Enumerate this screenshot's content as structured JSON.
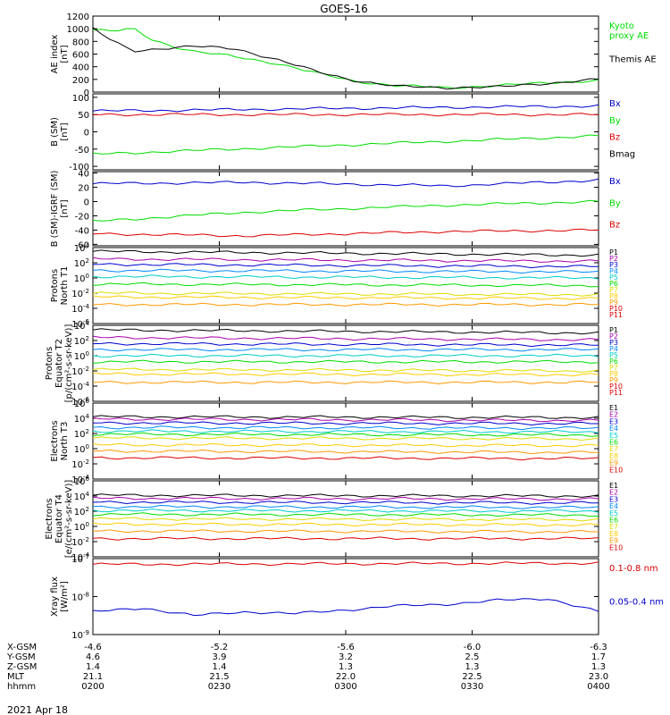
{
  "title": "GOES-16",
  "date_label": "2021 Apr 18",
  "colors": {
    "black": "#000000",
    "red": "#dd0000",
    "green": "#00dd00",
    "blue": "#0000cc",
    "cyan": "#00bbdd",
    "teal": "#00cccc",
    "yellow": "#dddd00",
    "orange": "#ff9900",
    "darkorange": "#cc6600"
  },
  "orbit_table": {
    "rows": [
      {
        "label": "X-GSM",
        "values": [
          "-4.6",
          "-5.2",
          "-5.6",
          "-6.0",
          "-6.3"
        ]
      },
      {
        "label": "Y-GSM",
        "values": [
          "4.6",
          "3.9",
          "3.2",
          "2.5",
          "1.7"
        ]
      },
      {
        "label": "Z-GSM",
        "values": [
          "1.4",
          "1.4",
          "1.3",
          "1.3",
          "1.3"
        ]
      },
      {
        "label": "MLT",
        "values": [
          "21.1",
          "21.5",
          "22.0",
          "22.5",
          "23.0"
        ]
      },
      {
        "label": "hhmm",
        "values": [
          "0200",
          "0230",
          "0300",
          "0330",
          "0400"
        ]
      }
    ]
  },
  "chart_data": [
    {
      "type": "line",
      "id": "ae",
      "ylabel": "AE index\n[nT]",
      "ylim": [
        0,
        1200
      ],
      "ticks": [
        "0",
        "200",
        "400",
        "600",
        "800",
        "1000",
        "1200"
      ],
      "tick_values": [
        0,
        200,
        400,
        600,
        800,
        1000,
        1200
      ],
      "x": [
        "0200",
        "0230",
        "0300",
        "0330",
        "0400"
      ],
      "series": [
        {
          "name": "Kyoto\nproxy AE",
          "color": "#00dd00",
          "x": [
            0,
            0.04,
            0.08,
            0.12,
            0.16,
            0.2,
            0.28,
            0.36,
            0.44,
            0.52,
            0.6,
            0.7,
            0.8,
            0.9,
            1.0
          ],
          "values": [
            980,
            960,
            1000,
            820,
            720,
            640,
            560,
            460,
            300,
            170,
            100,
            70,
            100,
            150,
            180
          ]
        },
        {
          "name": "Themis AE",
          "color": "#000000",
          "x": [
            0,
            0.04,
            0.08,
            0.12,
            0.16,
            0.2,
            0.28,
            0.36,
            0.44,
            0.52,
            0.6,
            0.7,
            0.8,
            0.9,
            1.0
          ],
          "values": [
            1000,
            800,
            650,
            680,
            700,
            720,
            690,
            520,
            330,
            180,
            90,
            70,
            80,
            140,
            200
          ]
        }
      ]
    },
    {
      "type": "line",
      "id": "bsm",
      "ylabel": "B (SM)\n[nT]",
      "ylim": [
        -110,
        110
      ],
      "ticks": [
        "-100",
        "-50",
        "0",
        "50",
        "100"
      ],
      "tick_values": [
        -100,
        -50,
        0,
        50,
        100
      ],
      "series": [
        {
          "name": "Bx",
          "color": "#0000cc",
          "x": [
            0,
            0.5,
            1.0
          ],
          "values": [
            60,
            68,
            75
          ]
        },
        {
          "name": "By",
          "color": "#00dd00",
          "x": [
            0,
            0.5,
            1.0
          ],
          "values": [
            -65,
            -38,
            -12
          ]
        },
        {
          "name": "Bz",
          "color": "#dd0000",
          "x": [
            0,
            0.5,
            1.0
          ],
          "values": [
            50,
            50,
            50
          ]
        },
        {
          "name": "Bmag",
          "color": "#000000",
          "x": [],
          "values": []
        }
      ]
    },
    {
      "type": "line",
      "id": "bigrf",
      "ylabel": "B (SM)-IGRF (SM)\n[nT]",
      "ylim": [
        -62,
        42
      ],
      "ticks": [
        "-60",
        "-40",
        "-20",
        "0",
        "20",
        "40"
      ],
      "tick_values": [
        -60,
        -40,
        -20,
        0,
        20,
        40
      ],
      "series": [
        {
          "name": "Bx",
          "color": "#0000cc",
          "x": [
            0,
            0.3,
            0.7,
            1.0
          ],
          "values": [
            25,
            27,
            22,
            30
          ]
        },
        {
          "name": "By",
          "color": "#00dd00",
          "x": [
            0,
            0.3,
            0.7,
            1.0
          ],
          "values": [
            -28,
            -15,
            -5,
            0
          ]
        },
        {
          "name": "Bz",
          "color": "#dd0000",
          "x": [
            0,
            0.3,
            0.7,
            1.0
          ],
          "values": [
            -45,
            -48,
            -42,
            -40
          ]
        }
      ]
    },
    {
      "type": "line",
      "id": "pn",
      "ylabel": "Protons\nNorth T1",
      "log": true,
      "ylim": [
        -6,
        4
      ],
      "ticks": [
        "10^-6",
        "10^-4",
        "10^-2",
        "10^0",
        "10^2",
        "10^4"
      ],
      "tick_values": [
        -6,
        -4,
        -2,
        0,
        2,
        4
      ],
      "series": [
        {
          "name": "P1",
          "color": "#000000",
          "x": [
            0,
            1.0
          ],
          "values": [
            3.5,
            3.0
          ]
        },
        {
          "name": "P2",
          "color": "#aa00aa",
          "x": [
            0,
            1.0
          ],
          "values": [
            2.5,
            2.2
          ]
        },
        {
          "name": "P3",
          "color": "#0000cc",
          "x": [
            0,
            1.0
          ],
          "values": [
            1.8,
            1.5
          ]
        },
        {
          "name": "P4",
          "color": "#0088ff",
          "x": [
            0,
            1.0
          ],
          "values": [
            1.0,
            0.8
          ]
        },
        {
          "name": "P5",
          "color": "#00cccc",
          "x": [
            0,
            1.0
          ],
          "values": [
            0.2,
            0.0
          ]
        },
        {
          "name": "P6",
          "color": "#00dd00",
          "x": [
            0,
            1.0
          ],
          "values": [
            -0.8,
            -1.0
          ]
        },
        {
          "name": "P7",
          "color": "#dddd00",
          "x": [
            0,
            1.0
          ],
          "values": [
            -2.0,
            -2.2
          ]
        },
        {
          "name": "P8",
          "color": "#ffcc00",
          "x": [
            0,
            1.0
          ],
          "values": [
            -2.5,
            -2.7
          ]
        },
        {
          "name": "P9",
          "color": "#ff9900",
          "x": [
            0,
            1.0
          ],
          "values": [
            -3.5,
            -3.5
          ]
        },
        {
          "name": "P10",
          "color": "#dd0000",
          "x": [],
          "values": []
        },
        {
          "name": "P11",
          "color": "#dd0000",
          "x": [],
          "values": []
        }
      ]
    },
    {
      "type": "line",
      "id": "pe",
      "ylabel": "Protons\nEquator T2\n[p/(cm²-s-sr-keV)]",
      "log": true,
      "ylim": [
        -6,
        4
      ],
      "ticks": [
        "10^-6",
        "10^-4",
        "10^-2",
        "10^0",
        "10^2",
        "10^4"
      ],
      "tick_values": [
        -6,
        -4,
        -2,
        0,
        2,
        4
      ],
      "series": [
        {
          "name": "P1",
          "color": "#000000",
          "x": [
            0,
            1.0
          ],
          "values": [
            3.4,
            3.0
          ]
        },
        {
          "name": "P2",
          "color": "#aa00aa",
          "x": [
            0,
            1.0
          ],
          "values": [
            2.4,
            2.1
          ]
        },
        {
          "name": "P3",
          "color": "#0000cc",
          "x": [
            0,
            1.0
          ],
          "values": [
            1.6,
            1.4
          ]
        },
        {
          "name": "P4",
          "color": "#0088ff",
          "x": [
            0,
            1.0
          ],
          "values": [
            0.8,
            0.8
          ]
        },
        {
          "name": "P5",
          "color": "#00cccc",
          "x": [
            0,
            1.0
          ],
          "values": [
            0.0,
            0.0
          ]
        },
        {
          "name": "P6",
          "color": "#00dd00",
          "x": [
            0,
            1.0
          ],
          "values": [
            -0.8,
            -0.8
          ]
        },
        {
          "name": "P7",
          "color": "#dddd00",
          "x": [
            0,
            1.0
          ],
          "values": [
            -1.8,
            -2.0
          ]
        },
        {
          "name": "P8",
          "color": "#ffcc00",
          "x": [
            0,
            1.0
          ],
          "values": [
            -2.4,
            -2.5
          ]
        },
        {
          "name": "P9",
          "color": "#ff9900",
          "x": [
            0,
            1.0
          ],
          "values": [
            -3.5,
            -3.5
          ]
        },
        {
          "name": "P10",
          "color": "#dd0000",
          "x": [],
          "values": []
        },
        {
          "name": "P11",
          "color": "#dd0000",
          "x": [],
          "values": []
        }
      ]
    },
    {
      "type": "line",
      "id": "en",
      "ylabel": "Electrons\nNorth T3",
      "log": true,
      "ylim": [
        -4,
        6
      ],
      "ticks": [
        "10^-4",
        "10^-2",
        "10^0",
        "10^2",
        "10^4",
        "10^6"
      ],
      "tick_values": [
        -4,
        -2,
        0,
        2,
        4,
        6
      ],
      "series": [
        {
          "name": "E1",
          "color": "#000000",
          "x": [
            0,
            1.0
          ],
          "values": [
            4.2,
            4.1
          ]
        },
        {
          "name": "E2",
          "color": "#aa00aa",
          "x": [
            0,
            1.0
          ],
          "values": [
            3.9,
            3.7
          ]
        },
        {
          "name": "E3",
          "color": "#0000cc",
          "x": [
            0,
            1.0
          ],
          "values": [
            3.4,
            3.3
          ]
        },
        {
          "name": "E4",
          "color": "#0088ff",
          "x": [
            0,
            1.0
          ],
          "values": [
            2.8,
            2.7
          ]
        },
        {
          "name": "E5",
          "color": "#00cccc",
          "x": [
            0,
            1.0
          ],
          "values": [
            2.3,
            2.2
          ]
        },
        {
          "name": "E6",
          "color": "#00dd00",
          "x": [
            0,
            1.0
          ],
          "values": [
            1.9,
            1.8
          ]
        },
        {
          "name": "E7",
          "color": "#dddd00",
          "x": [
            0,
            1.0
          ],
          "values": [
            1.4,
            1.3
          ]
        },
        {
          "name": "E8",
          "color": "#ffcc00",
          "x": [
            0,
            1.0
          ],
          "values": [
            0.5,
            0.4
          ]
        },
        {
          "name": "E9",
          "color": "#ff9900",
          "x": [
            0,
            1.0
          ],
          "values": [
            -0.3,
            -0.5
          ]
        },
        {
          "name": "E10",
          "color": "#dd0000",
          "x": [
            0,
            1.0
          ],
          "values": [
            -1.2,
            -1.3
          ]
        }
      ]
    },
    {
      "type": "line",
      "id": "ee",
      "ylabel": "Electrons\nEquator T4\n[e/(cm²-s-sr-keV)]",
      "log": true,
      "ylim": [
        -4,
        6
      ],
      "ticks": [
        "10^-4",
        "10^-2",
        "10^0",
        "10^2",
        "10^4",
        "10^6"
      ],
      "tick_values": [
        -4,
        -2,
        0,
        2,
        4,
        6
      ],
      "series": [
        {
          "name": "E1",
          "color": "#000000",
          "x": [
            0,
            1.0
          ],
          "values": [
            4.1,
            4.0
          ]
        },
        {
          "name": "E2",
          "color": "#aa00aa",
          "x": [
            0,
            1.0
          ],
          "values": [
            3.7,
            3.6
          ]
        },
        {
          "name": "E3",
          "color": "#0000cc",
          "x": [
            0,
            1.0
          ],
          "values": [
            3.2,
            3.1
          ]
        },
        {
          "name": "E4",
          "color": "#0088ff",
          "x": [
            0,
            1.0
          ],
          "values": [
            2.6,
            2.5
          ]
        },
        {
          "name": "E5",
          "color": "#00cccc",
          "x": [
            0,
            1.0
          ],
          "values": [
            2.1,
            2.0
          ]
        },
        {
          "name": "E6",
          "color": "#00dd00",
          "x": [
            0,
            1.0
          ],
          "values": [
            1.6,
            1.5
          ]
        },
        {
          "name": "E7",
          "color": "#dddd00",
          "x": [
            0,
            1.0
          ],
          "values": [
            1.0,
            0.9
          ]
        },
        {
          "name": "E8",
          "color": "#ffcc00",
          "x": [
            0,
            1.0
          ],
          "values": [
            0.3,
            0.2
          ]
        },
        {
          "name": "E9",
          "color": "#ff9900",
          "x": [
            0,
            1.0
          ],
          "values": [
            -0.6,
            -0.7
          ]
        },
        {
          "name": "E10",
          "color": "#dd0000",
          "x": [
            0,
            1.0
          ],
          "values": [
            -1.6,
            -1.6
          ]
        }
      ]
    },
    {
      "type": "line",
      "id": "xray",
      "ylabel": "Xray flux\n[W/m²]",
      "log": true,
      "ylim": [
        -9,
        -7
      ],
      "ticks": [
        "10^-9",
        "10^-8",
        "10^-7"
      ],
      "tick_values": [
        -9,
        -8,
        -7
      ],
      "series": [
        {
          "name": "0.1-0.8 nm",
          "color": "#dd0000",
          "x": [
            0,
            1.0
          ],
          "values": [
            -7.15,
            -7.12
          ]
        },
        {
          "name": "0.05-0.4 nm",
          "color": "#0000cc",
          "x": [
            0,
            0.1,
            0.2,
            0.3,
            0.4,
            0.5,
            0.6,
            0.7,
            0.8,
            0.9,
            1.0
          ],
          "values": [
            -8.4,
            -8.3,
            -8.5,
            -8.4,
            -8.45,
            -8.35,
            -8.25,
            -8.2,
            -8.1,
            -8.05,
            -8.4
          ]
        }
      ]
    }
  ]
}
